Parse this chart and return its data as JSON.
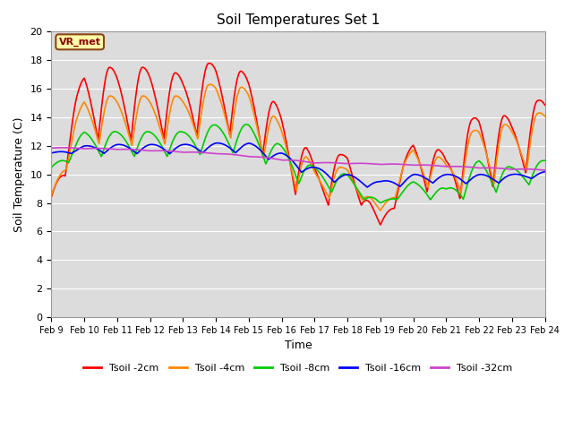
{
  "title": "Soil Temperatures Set 1",
  "xlabel": "Time",
  "ylabel": "Soil Temperature (C)",
  "ylim": [
    0,
    20
  ],
  "xlim": [
    0,
    15
  ],
  "bg_color": "#dcdcdc",
  "annotation_text": "VR_met",
  "annotation_color": "#8B0000",
  "annotation_bg": "#ffffaa",
  "xtick_labels": [
    "Feb 9",
    "Feb 10",
    "Feb 11",
    "Feb 12",
    "Feb 13",
    "Feb 14",
    "Feb 15",
    "Feb 16",
    "Feb 17",
    "Feb 18",
    "Feb 19",
    "Feb 20",
    "Feb 21",
    "Feb 22",
    "Feb 23",
    "Feb 24"
  ],
  "ytick_labels": [
    "0",
    "2",
    "4",
    "6",
    "8",
    "10",
    "12",
    "14",
    "16",
    "18",
    "20"
  ],
  "series": {
    "Tsoil -2cm": {
      "color": "#ff0000",
      "lw": 1.2
    },
    "Tsoil -4cm": {
      "color": "#ff8800",
      "lw": 1.2
    },
    "Tsoil -8cm": {
      "color": "#00cc00",
      "lw": 1.2
    },
    "Tsoil -16cm": {
      "color": "#0000ff",
      "lw": 1.2
    },
    "Tsoil -32cm": {
      "color": "#cc44cc",
      "lw": 1.2
    }
  }
}
